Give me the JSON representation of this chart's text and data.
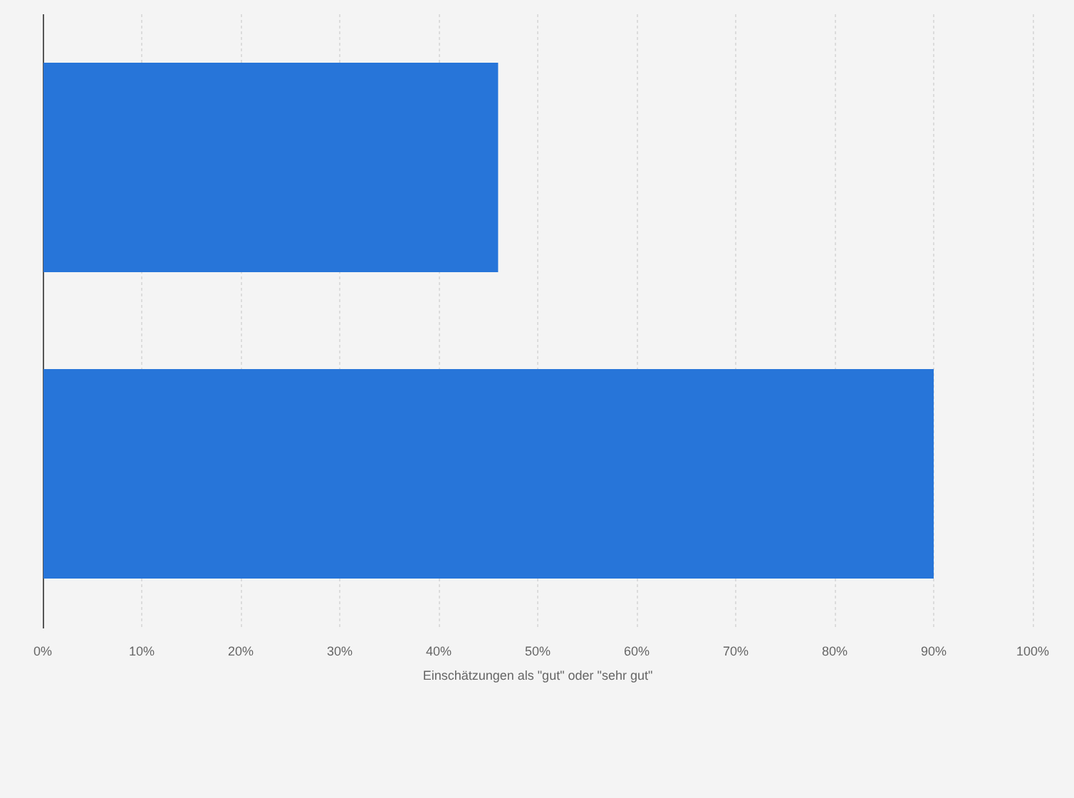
{
  "chart_data": {
    "type": "bar",
    "orientation": "horizontal",
    "categories": [
      null,
      null
    ],
    "values": [
      46,
      90
    ],
    "color": "#2775d9",
    "xlabel": "Einschätzungen als \"gut\" oder \"sehr gut\"",
    "xlim": [
      0,
      100
    ],
    "xticks": [
      {
        "value": 0,
        "label": "0%"
      },
      {
        "value": 10,
        "label": "10%"
      },
      {
        "value": 20,
        "label": "20%"
      },
      {
        "value": 30,
        "label": "30%"
      },
      {
        "value": 40,
        "label": "40%"
      },
      {
        "value": 50,
        "label": "50%"
      },
      {
        "value": 60,
        "label": "60%"
      },
      {
        "value": 70,
        "label": "70%"
      },
      {
        "value": 80,
        "label": "80%"
      },
      {
        "value": 90,
        "label": "90%"
      },
      {
        "value": 100,
        "label": "100%"
      }
    ],
    "grid": "x"
  }
}
